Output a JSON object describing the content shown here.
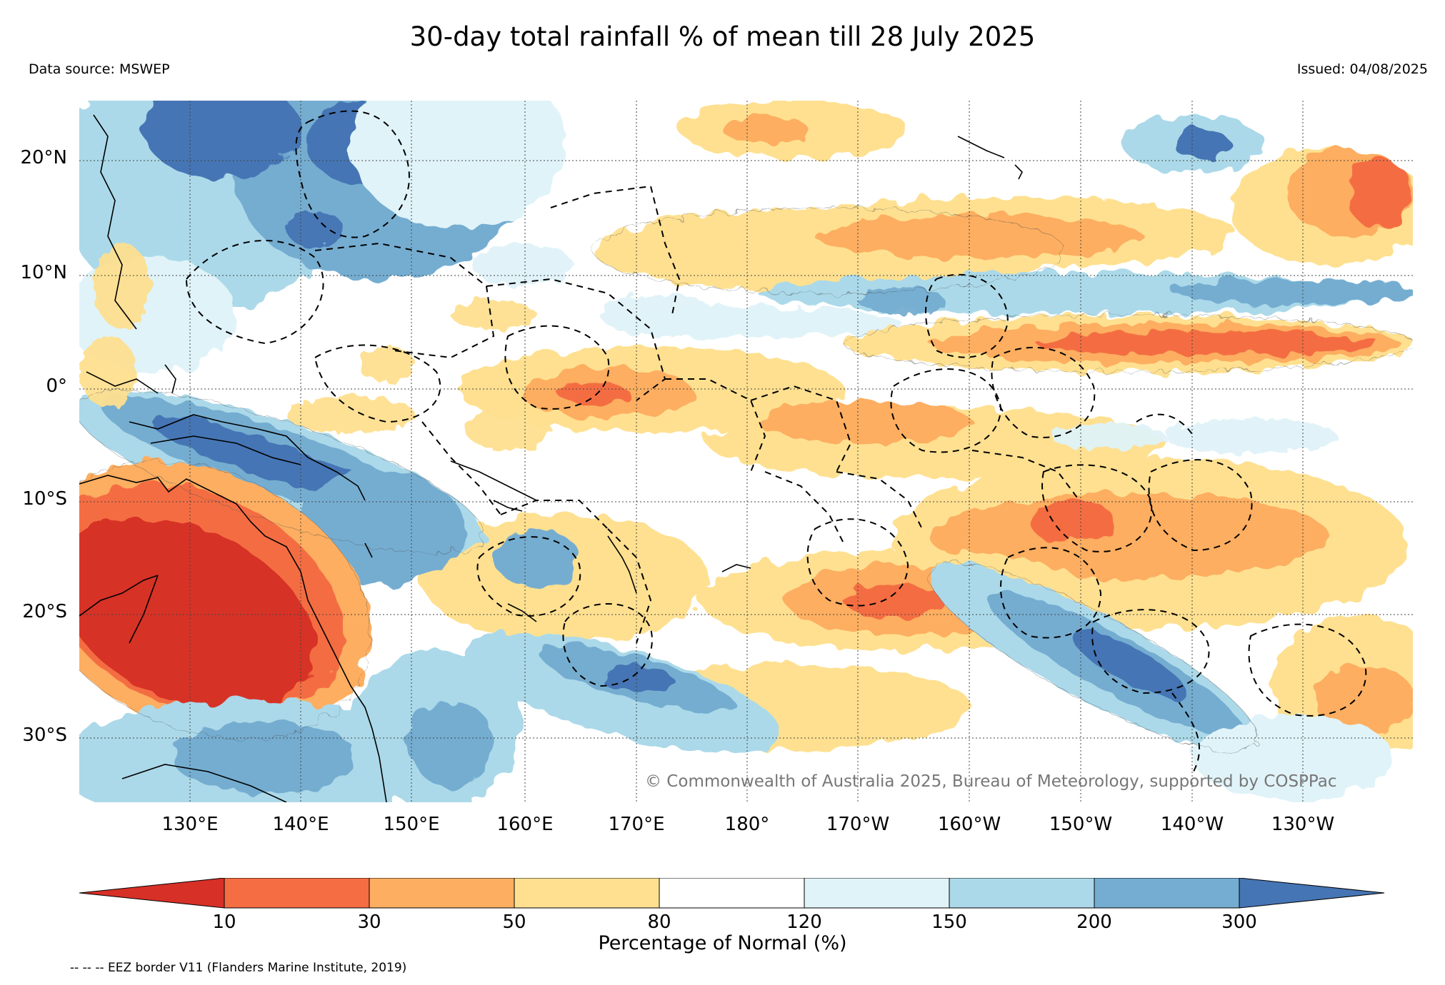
{
  "title": "30-day total rainfall % of mean till 28 July 2025",
  "data_source": "Data source: MSWEP",
  "issued": "Issued: 04/08/2025",
  "copyright": "© Commonwealth of Australia 2025, Bureau of Meteorology, supported by COSPPac",
  "latitude_labels": [
    "20°N",
    "10°N",
    "0°",
    "10°S",
    "20°S",
    "30°S"
  ],
  "longitude_labels": [
    "130°E",
    "140°E",
    "150°E",
    "160°E",
    "170°E",
    "180°",
    "170°W",
    "160°W",
    "150°W",
    "140°W",
    "130°W"
  ],
  "colorbar": {
    "label": "Percentage of Normal (%)",
    "ticks": [
      "10",
      "30",
      "50",
      "80",
      "120",
      "150",
      "200",
      "300"
    ],
    "colors": [
      "#d73027",
      "#f46d43",
      "#fdae61",
      "#fee090",
      "#ffffff",
      "#e0f3f8",
      "#abd9e9",
      "#74add1",
      "#4575b4"
    ]
  },
  "eez_note": "-- -- -- EEZ border V11 (Flanders Marine Institute, 2019)"
}
